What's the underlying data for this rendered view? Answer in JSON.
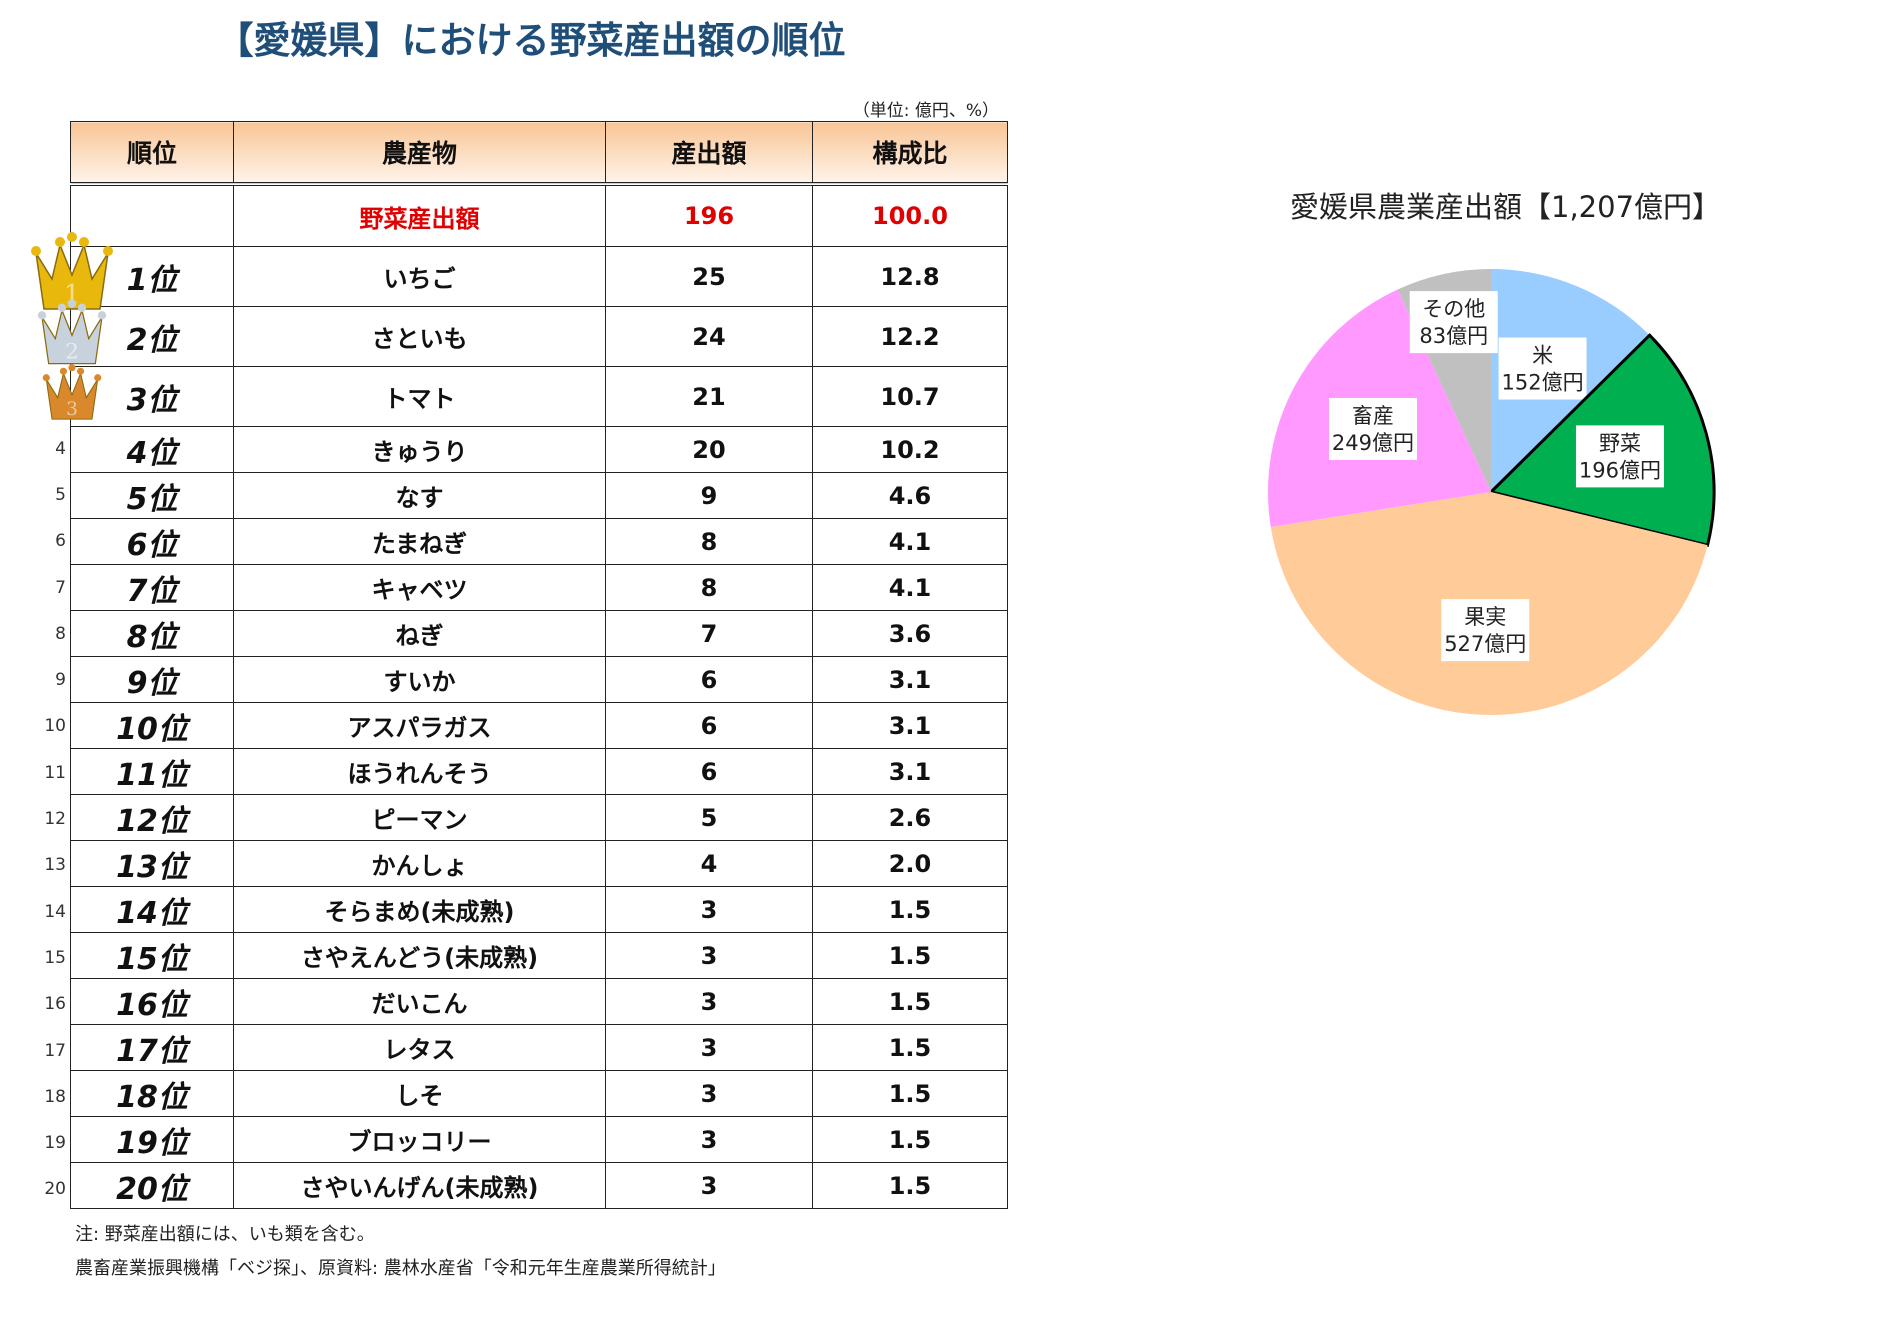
{
  "title": "【愛媛県】における野菜産出額の順位",
  "unit": "（単位: 億円、%）",
  "table": {
    "headers": [
      "順位",
      "農産物",
      "産出額",
      "構成比"
    ],
    "total": {
      "item": "野菜産出額",
      "value": "196",
      "share": "100.0"
    },
    "rows": [
      {
        "no": "1",
        "rank": "1位",
        "item": "いちご",
        "value": "25",
        "share": "12.8"
      },
      {
        "no": "2",
        "rank": "2位",
        "item": "さといも",
        "value": "24",
        "share": "12.2"
      },
      {
        "no": "3",
        "rank": "3位",
        "item": "トマト",
        "value": "21",
        "share": "10.7"
      },
      {
        "no": "4",
        "rank": "4位",
        "item": "きゅうり",
        "value": "20",
        "share": "10.2"
      },
      {
        "no": "5",
        "rank": "5位",
        "item": "なす",
        "value": "9",
        "share": "4.6"
      },
      {
        "no": "6",
        "rank": "6位",
        "item": "たまねぎ",
        "value": "8",
        "share": "4.1"
      },
      {
        "no": "7",
        "rank": "7位",
        "item": "キャベツ",
        "value": "8",
        "share": "4.1"
      },
      {
        "no": "8",
        "rank": "8位",
        "item": "ねぎ",
        "value": "7",
        "share": "3.6"
      },
      {
        "no": "9",
        "rank": "9位",
        "item": "すいか",
        "value": "6",
        "share": "3.1"
      },
      {
        "no": "10",
        "rank": "10位",
        "item": "アスパラガス",
        "value": "6",
        "share": "3.1"
      },
      {
        "no": "11",
        "rank": "11位",
        "item": "ほうれんそう",
        "value": "6",
        "share": "3.1"
      },
      {
        "no": "12",
        "rank": "12位",
        "item": "ピーマン",
        "value": "5",
        "share": "2.6"
      },
      {
        "no": "13",
        "rank": "13位",
        "item": "かんしょ",
        "value": "4",
        "share": "2.0"
      },
      {
        "no": "14",
        "rank": "14位",
        "item": "そらまめ(未成熟)",
        "value": "3",
        "share": "1.5"
      },
      {
        "no": "15",
        "rank": "15位",
        "item": "さやえんどう(未成熟)",
        "value": "3",
        "share": "1.5"
      },
      {
        "no": "16",
        "rank": "16位",
        "item": "だいこん",
        "value": "3",
        "share": "1.5"
      },
      {
        "no": "17",
        "rank": "17位",
        "item": "レタス",
        "value": "3",
        "share": "1.5"
      },
      {
        "no": "18",
        "rank": "18位",
        "item": "しそ",
        "value": "3",
        "share": "1.5"
      },
      {
        "no": "19",
        "rank": "19位",
        "item": "ブロッコリー",
        "value": "3",
        "share": "1.5"
      },
      {
        "no": "20",
        "rank": "20位",
        "item": "さやいんげん(未成熟)",
        "value": "3",
        "share": "1.5"
      }
    ]
  },
  "notes": [
    "注: 野菜産出額には、いも類を含む。",
    "農畜産業振興機構「ベジ探」、原資料: 農林水産省「令和元年生産農業所得統計」"
  ],
  "chart_data": {
    "type": "pie",
    "title": "愛媛県農業産出額【1,207億円】",
    "unit": "億円",
    "slices": [
      {
        "label": "米",
        "value": 152,
        "text": "152億円",
        "color": "#99ccff"
      },
      {
        "label": "野菜",
        "value": 196,
        "text": "196億円",
        "color": "#00b050",
        "highlight": true
      },
      {
        "label": "果実",
        "value": 527,
        "text": "527億円",
        "color": "#ffcc99"
      },
      {
        "label": "畜産",
        "value": 249,
        "text": "249億円",
        "color": "#ff99ff"
      },
      {
        "label": "その他",
        "value": 83,
        "text": "83億円",
        "color": "#c0c0c0"
      }
    ],
    "start": "top",
    "direction": "clockwise"
  },
  "crown_colors": [
    "#e8b80c",
    "#c8d2dc",
    "#d9892c"
  ]
}
